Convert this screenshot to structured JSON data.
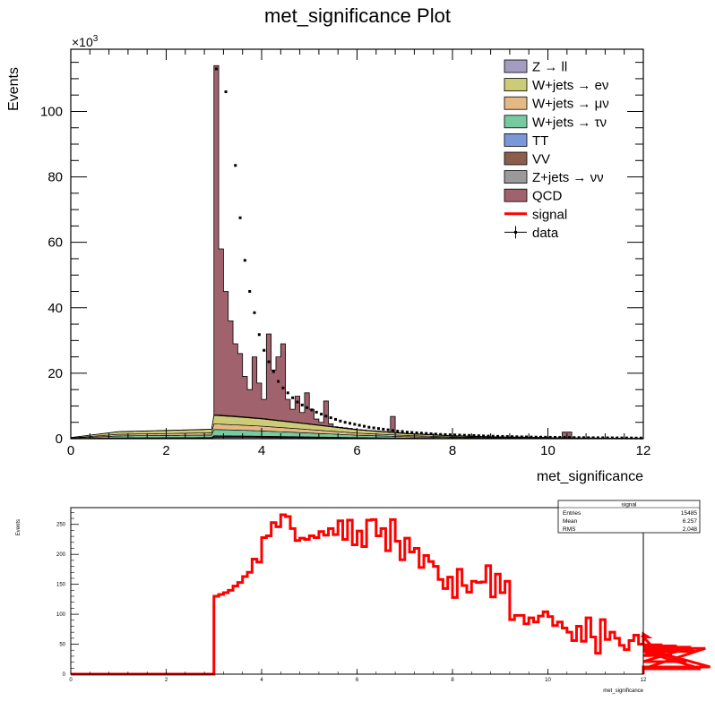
{
  "chart_data": [
    {
      "type": "area",
      "title": "met_significance Plot",
      "xlabel": "met_significance",
      "ylabel": "Events",
      "multiplier_label": "×10",
      "multiplier_exp": "3",
      "xlim": [
        0,
        12
      ],
      "ylim": [
        0,
        119000
      ],
      "x_ticks": [
        0,
        2,
        4,
        6,
        8,
        10,
        12
      ],
      "x_tick_labels": [
        "0",
        "2",
        "4",
        "6",
        "8",
        "10",
        "12"
      ],
      "y_ticks": [
        0,
        20000,
        40000,
        60000,
        80000,
        100000
      ],
      "y_tick_labels": [
        "0",
        "20",
        "40",
        "60",
        "80",
        "100"
      ],
      "legend_placement": "top-right",
      "stack_breakpoints": [
        [
          0,
          0.05
        ],
        [
          1,
          0.3
        ],
        [
          2,
          0.35
        ],
        [
          2.95,
          0.4
        ],
        [
          3.0,
          1.0
        ],
        [
          3.4,
          0.95
        ],
        [
          4.0,
          0.85
        ],
        [
          5.0,
          0.62
        ],
        [
          6.0,
          0.38
        ],
        [
          7.0,
          0.22
        ],
        [
          8.0,
          0.12
        ],
        [
          9.0,
          0.07
        ],
        [
          10.0,
          0.04
        ],
        [
          11.0,
          0.02
        ],
        [
          12.0,
          0.01
        ]
      ],
      "series": [
        {
          "name": "Z → ll",
          "color": "#a49dc1",
          "peak": 200
        },
        {
          "name": "W+jets → eν",
          "color": "#cccc77",
          "peak": 2600
        },
        {
          "name": "W+jets → μν",
          "color": "#e4b985",
          "peak": 1700
        },
        {
          "name": "W+jets → τν",
          "color": "#77c9a0",
          "peak": 1900
        },
        {
          "name": "TT",
          "color": "#7a97d8",
          "peak": 200
        },
        {
          "name": "VV",
          "color": "#8b5e4b",
          "peak": 300
        },
        {
          "name": "Z+jets → νν",
          "color": "#9a9a9a",
          "peak": 400
        },
        {
          "name": "QCD",
          "color": "#a0626c",
          "x_points": [
            3.0,
            3.1,
            3.2,
            3.3,
            3.4,
            3.5,
            3.6,
            3.7,
            3.8,
            3.9,
            4.0,
            4.1,
            4.2,
            4.3,
            4.4,
            4.5,
            4.6,
            4.7,
            4.8,
            4.9,
            5.0,
            5.1,
            5.2,
            5.3,
            5.4,
            5.5,
            5.6,
            5.7,
            5.8,
            5.9,
            6.0,
            6.1,
            6.2,
            6.3,
            6.4,
            6.5,
            6.6,
            6.7,
            6.8,
            6.9,
            7.0,
            7.1,
            7.2,
            7.3,
            7.4,
            7.5,
            7.6,
            7.7,
            7.8,
            7.9,
            8.0,
            8.2,
            8.4,
            8.6,
            8.8,
            9.0,
            9.5,
            10.0,
            10.3,
            10.4,
            10.5,
            11.0,
            11.5
          ],
          "tops": [
            114000,
            58000,
            45000,
            36000,
            29000,
            26000,
            19000,
            15000,
            25000,
            17000,
            12000,
            32000,
            21000,
            25000,
            29000,
            12000,
            9000,
            13000,
            8000,
            14000,
            9000,
            6000,
            5000,
            11500,
            4500,
            3500,
            3000,
            2800,
            2500,
            2200,
            2000,
            1800,
            1600,
            1500,
            1400,
            1300,
            1200,
            6800,
            1000,
            900,
            800,
            700,
            650,
            600,
            550,
            500,
            450,
            400,
            380,
            350,
            300,
            280,
            260,
            240,
            220,
            200,
            180,
            170,
            2000,
            2000,
            160,
            150,
            140
          ]
        }
      ],
      "signal": {
        "name": "signal",
        "color": "#ff0000"
      },
      "data": {
        "name": "data",
        "x": [
          3.05,
          3.25,
          3.45,
          3.55,
          3.65,
          3.75,
          3.85,
          3.95,
          4.05,
          4.15,
          4.25,
          4.35,
          4.45,
          4.55,
          4.65,
          4.75,
          4.85,
          4.95,
          5.05,
          5.15,
          5.25,
          5.35,
          5.45,
          5.55,
          5.65,
          5.75,
          5.85,
          5.95,
          6.05,
          6.15,
          6.25,
          6.35,
          6.45,
          6.55,
          6.65,
          6.75,
          6.85,
          6.95,
          7.05,
          7.15,
          7.25,
          7.35,
          7.45,
          7.55,
          7.65,
          7.75,
          7.85,
          7.95,
          8.05,
          8.15,
          8.25,
          8.35,
          8.45,
          8.55,
          8.65,
          8.75,
          8.85,
          8.95,
          9.05,
          9.15,
          9.25,
          9.35,
          9.45,
          9.55,
          9.65,
          9.75,
          9.85,
          9.95,
          10.05,
          10.15,
          10.25,
          10.35,
          10.45,
          10.55,
          10.65,
          10.75,
          10.85,
          10.95,
          11.05,
          11.15,
          11.25,
          11.35,
          11.45,
          11.55,
          11.65,
          11.75,
          11.85,
          11.95
        ],
        "y": [
          113000,
          106000,
          83500,
          67500,
          54500,
          45000,
          38500,
          31800,
          27000,
          23500,
          20500,
          17500,
          15500,
          14000,
          12500,
          11200,
          10300,
          9500,
          8800,
          8100,
          7500,
          6900,
          6400,
          5900,
          5400,
          5000,
          4700,
          4400,
          4100,
          3800,
          3500,
          3300,
          3100,
          2900,
          2700,
          2500,
          2300,
          2200,
          2000,
          1900,
          1800,
          1700,
          1600,
          1500,
          1400,
          1300,
          1250,
          1200,
          1150,
          1100,
          1050,
          1000,
          950,
          900,
          850,
          800,
          760,
          720,
          690,
          660,
          630,
          600,
          570,
          540,
          510,
          490,
          470,
          450,
          430,
          410,
          390,
          370,
          350,
          340,
          330,
          320,
          310,
          300,
          290,
          280,
          270,
          260,
          250,
          240,
          230,
          220,
          210,
          200
        ]
      }
    },
    {
      "type": "line",
      "title": "",
      "xlabel": "met_significance",
      "ylabel": "Events",
      "xlim": [
        0,
        12
      ],
      "ylim": [
        0,
        278
      ],
      "x_ticks": [
        0,
        2,
        4,
        6,
        8,
        10,
        12
      ],
      "x_tick_labels": [
        "0",
        "2",
        "4",
        "6",
        "8",
        "10",
        "12"
      ],
      "y_ticks": [
        0,
        50,
        100,
        150,
        200,
        250
      ],
      "y_tick_labels": [
        "0",
        "50",
        "100",
        "150",
        "200",
        "250"
      ],
      "bin_width": 0.1,
      "bin_start": 3.0,
      "values": [
        130,
        133,
        136,
        140,
        147,
        153,
        163,
        170,
        192,
        187,
        228,
        231,
        253,
        246,
        266,
        263,
        243,
        223,
        227,
        225,
        231,
        228,
        238,
        232,
        243,
        233,
        256,
        225,
        257,
        216,
        239,
        213,
        257,
        258,
        231,
        243,
        206,
        258,
        222,
        191,
        227,
        204,
        210,
        178,
        198,
        188,
        180,
        158,
        143,
        162,
        128,
        175,
        148,
        137,
        155,
        153,
        154,
        181,
        129,
        167,
        136,
        155,
        91,
        98,
        98,
        84,
        94,
        87,
        97,
        104,
        96,
        81,
        87,
        77,
        70,
        56,
        80,
        55,
        94,
        62,
        35,
        91,
        58,
        70,
        60,
        48,
        41,
        56,
        65,
        50,
        67,
        62,
        45,
        48,
        49,
        40,
        31,
        47,
        43,
        21,
        45,
        38,
        9,
        43,
        12
      ],
      "series_color": "#ff0000",
      "stats": {
        "title": "signal",
        "rows": [
          {
            "label": "Entries",
            "value": "15485"
          },
          {
            "label": "Mean",
            "value": "6.257"
          },
          {
            "label": "RMS",
            "value": "2.048"
          }
        ]
      }
    }
  ]
}
